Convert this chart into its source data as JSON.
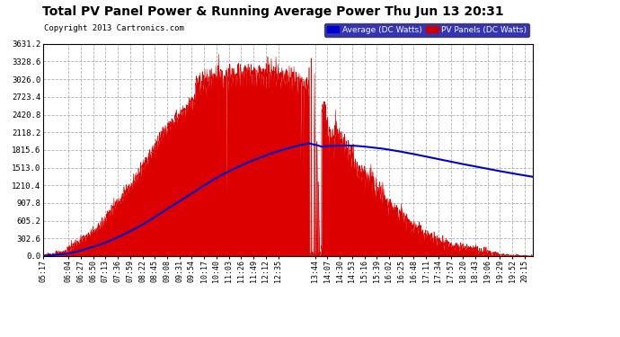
{
  "title": "Total PV Panel Power & Running Average Power Thu Jun 13 20:31",
  "copyright": "Copyright 2013 Cartronics.com",
  "legend_average": "Average (DC Watts)",
  "legend_pv": "PV Panels (DC Watts)",
  "ymax": 3631.2,
  "yticks": [
    0.0,
    302.6,
    605.2,
    907.8,
    1210.4,
    1513.0,
    1815.6,
    2118.2,
    2420.8,
    2723.4,
    3026.0,
    3328.6,
    3631.2
  ],
  "background_color": "#ffffff",
  "pv_color": "#dd0000",
  "avg_color": "#0000cc",
  "grid_color": "#b0b0b0",
  "x_labels": [
    "05:17",
    "06:04",
    "06:27",
    "06:50",
    "07:13",
    "07:36",
    "07:59",
    "08:22",
    "08:45",
    "09:08",
    "09:31",
    "09:54",
    "10:17",
    "10:40",
    "11:03",
    "11:26",
    "11:49",
    "12:12",
    "12:35",
    "13:44",
    "14:07",
    "14:30",
    "14:53",
    "15:16",
    "15:39",
    "16:02",
    "16:25",
    "16:48",
    "17:11",
    "17:34",
    "17:57",
    "18:20",
    "18:43",
    "19:06",
    "19:29",
    "19:52",
    "20:15"
  ]
}
